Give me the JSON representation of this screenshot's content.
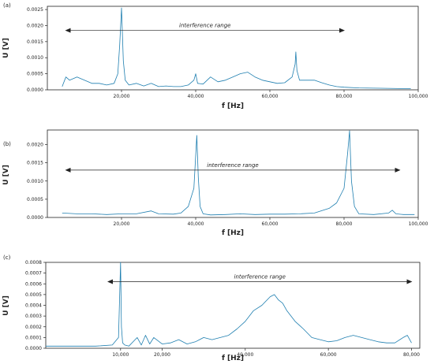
{
  "chart_data": [
    {
      "panel_label": "(a)",
      "type": "line",
      "xlabel": "f [Hz]",
      "ylabel": "U [V]",
      "xlim": [
        0,
        100000
      ],
      "ylim": [
        0,
        0.0026
      ],
      "x_ticks": [
        20000,
        40000,
        60000,
        80000,
        100000
      ],
      "x_tick_labels": [
        "20,000",
        "40,000",
        "60,000",
        "80,000",
        "100,000"
      ],
      "y_ticks": [
        0,
        0.0005,
        0.001,
        0.0015,
        0.002,
        0.0025
      ],
      "y_tick_labels": [
        "0.0000",
        "0.0005",
        "0.0010",
        "0.0015",
        "0.0020",
        "0.0025"
      ],
      "annotation": {
        "text": "interference range",
        "x_start": 5000,
        "x_end": 80000,
        "y": 0.00185
      },
      "series": [
        {
          "color": "#1f7fb0",
          "x": [
            4000,
            5000,
            6000,
            8000,
            10000,
            12000,
            14000,
            16000,
            18000,
            19000,
            19500,
            20000,
            20500,
            21000,
            22000,
            24000,
            26000,
            28000,
            30000,
            32000,
            34000,
            36000,
            38000,
            39500,
            40000,
            40500,
            42000,
            44000,
            46000,
            48000,
            50000,
            52000,
            54000,
            56000,
            58000,
            60000,
            62000,
            64000,
            66000,
            66800,
            67000,
            67300,
            68000,
            70000,
            72000,
            74000,
            76000,
            78000,
            80000,
            84000,
            90000,
            95000,
            98000
          ],
          "y": [
            0.0001,
            0.0004,
            0.0003,
            0.0004,
            0.0003,
            0.0002,
            0.0002,
            0.00015,
            0.0002,
            0.0005,
            0.0014,
            0.00255,
            0.0009,
            0.0003,
            0.00015,
            0.0002,
            0.00012,
            0.0002,
            0.0001,
            0.00012,
            0.0001,
            0.0001,
            0.00015,
            0.0003,
            0.0005,
            0.0002,
            0.00018,
            0.0004,
            0.00025,
            0.0003,
            0.0004,
            0.0005,
            0.00055,
            0.0004,
            0.0003,
            0.00025,
            0.0002,
            0.00022,
            0.0004,
            0.0008,
            0.00118,
            0.0006,
            0.0003,
            0.0003,
            0.0003,
            0.00022,
            0.00015,
            0.0001,
            8e-05,
            6e-05,
            5e-05,
            4e-05,
            4e-05
          ]
        }
      ]
    },
    {
      "panel_label": "(b)",
      "type": "line",
      "xlabel": "f [Hz]",
      "ylabel": "U [V]",
      "xlim": [
        0,
        100000
      ],
      "ylim": [
        0,
        0.0024
      ],
      "x_ticks": [
        20000,
        40000,
        60000,
        80000,
        100000
      ],
      "x_tick_labels": [
        "20,000",
        "40,000",
        "60,000",
        "80,000",
        "100,000"
      ],
      "y_ticks": [
        0,
        0.0005,
        0.001,
        0.0015,
        0.002
      ],
      "y_tick_labels": [
        "0.0000",
        "0.0005",
        "0.0010",
        "0.0015",
        "0.0020"
      ],
      "annotation": {
        "text": "interference range",
        "x_start": 5000,
        "x_end": 95000,
        "y": 0.0013
      },
      "series": [
        {
          "color": "#1f7fb0",
          "x": [
            4000,
            8000,
            12000,
            16000,
            20000,
            24000,
            28000,
            30000,
            34000,
            36000,
            38000,
            39500,
            40300,
            40700,
            41200,
            42000,
            44000,
            48000,
            52000,
            56000,
            60000,
            64000,
            68000,
            72000,
            76000,
            78000,
            80000,
            81000,
            81500,
            82000,
            82800,
            84000,
            88000,
            92000,
            93000,
            94000,
            96000,
            99000
          ],
          "y": [
            0.00012,
            0.0001,
            0.0001,
            8e-05,
            0.0001,
            0.0001,
            0.00018,
            0.0001,
            9e-05,
            0.00012,
            0.0003,
            0.0008,
            0.00225,
            0.0011,
            0.0003,
            0.0001,
            7e-05,
            8e-05,
            0.0001,
            8e-05,
            9e-05,
            9e-05,
            0.0001,
            0.00012,
            0.00025,
            0.0004,
            0.0008,
            0.0018,
            0.00238,
            0.001,
            0.0003,
            0.0001,
            8e-05,
            0.00012,
            0.0002,
            0.0001,
            8e-05,
            8e-05
          ]
        }
      ]
    },
    {
      "panel_label": "(c)",
      "type": "line",
      "xlabel": "f [Hz]",
      "ylabel": "U [V]",
      "xlim": [
        -8000,
        82000
      ],
      "ylim": [
        0,
        0.0008
      ],
      "x_ticks": [
        10000,
        20000,
        40000,
        60000,
        80000
      ],
      "x_tick_labels": [
        "10,000",
        "20,000",
        "40,000",
        "60,000",
        "80,000"
      ],
      "y_ticks": [
        0,
        0.0001,
        0.0002,
        0.0003,
        0.0004,
        0.0005,
        0.0006,
        0.0007,
        0.0008
      ],
      "y_tick_labels": [
        "0.0000",
        "0.0001",
        "0.0002",
        "0.0003",
        "0.0004",
        "0.0005",
        "0.0006",
        "0.0007",
        "0.0008"
      ],
      "annotation": {
        "text": "interference range",
        "x_start": 7000,
        "x_end": 80000,
        "y": 0.00062
      },
      "series": [
        {
          "color": "#1f7fb0",
          "x": [
            -8000,
            -2000,
            4000,
            8000,
            9500,
            10000,
            10200,
            10500,
            11000,
            12000,
            14000,
            15000,
            16000,
            17000,
            18000,
            20000,
            22000,
            24000,
            26000,
            28000,
            30000,
            32000,
            34000,
            36000,
            38000,
            40000,
            42000,
            44000,
            46000,
            47000,
            48000,
            49000,
            50000,
            52000,
            54000,
            56000,
            58000,
            60000,
            62000,
            64000,
            66000,
            68000,
            70000,
            72000,
            74000,
            76000,
            78000,
            79000,
            80000
          ],
          "y": [
            2e-05,
            2e-05,
            2e-05,
            3e-05,
            0.0001,
            0.0008,
            0.0002,
            5e-05,
            3e-05,
            2e-05,
            0.0001,
            3e-05,
            0.00012,
            4e-05,
            0.0001,
            4e-05,
            5e-05,
            8e-05,
            4e-05,
            6e-05,
            0.0001,
            8e-05,
            0.0001,
            0.00012,
            0.00018,
            0.00025,
            0.00035,
            0.0004,
            0.00048,
            0.0005,
            0.00045,
            0.00042,
            0.00035,
            0.00025,
            0.00018,
            0.0001,
            8e-05,
            6e-05,
            7e-05,
            0.0001,
            0.00012,
            0.0001,
            8e-05,
            6e-05,
            5e-05,
            5e-05,
            0.0001,
            0.00012,
            5e-05
          ]
        }
      ]
    }
  ]
}
